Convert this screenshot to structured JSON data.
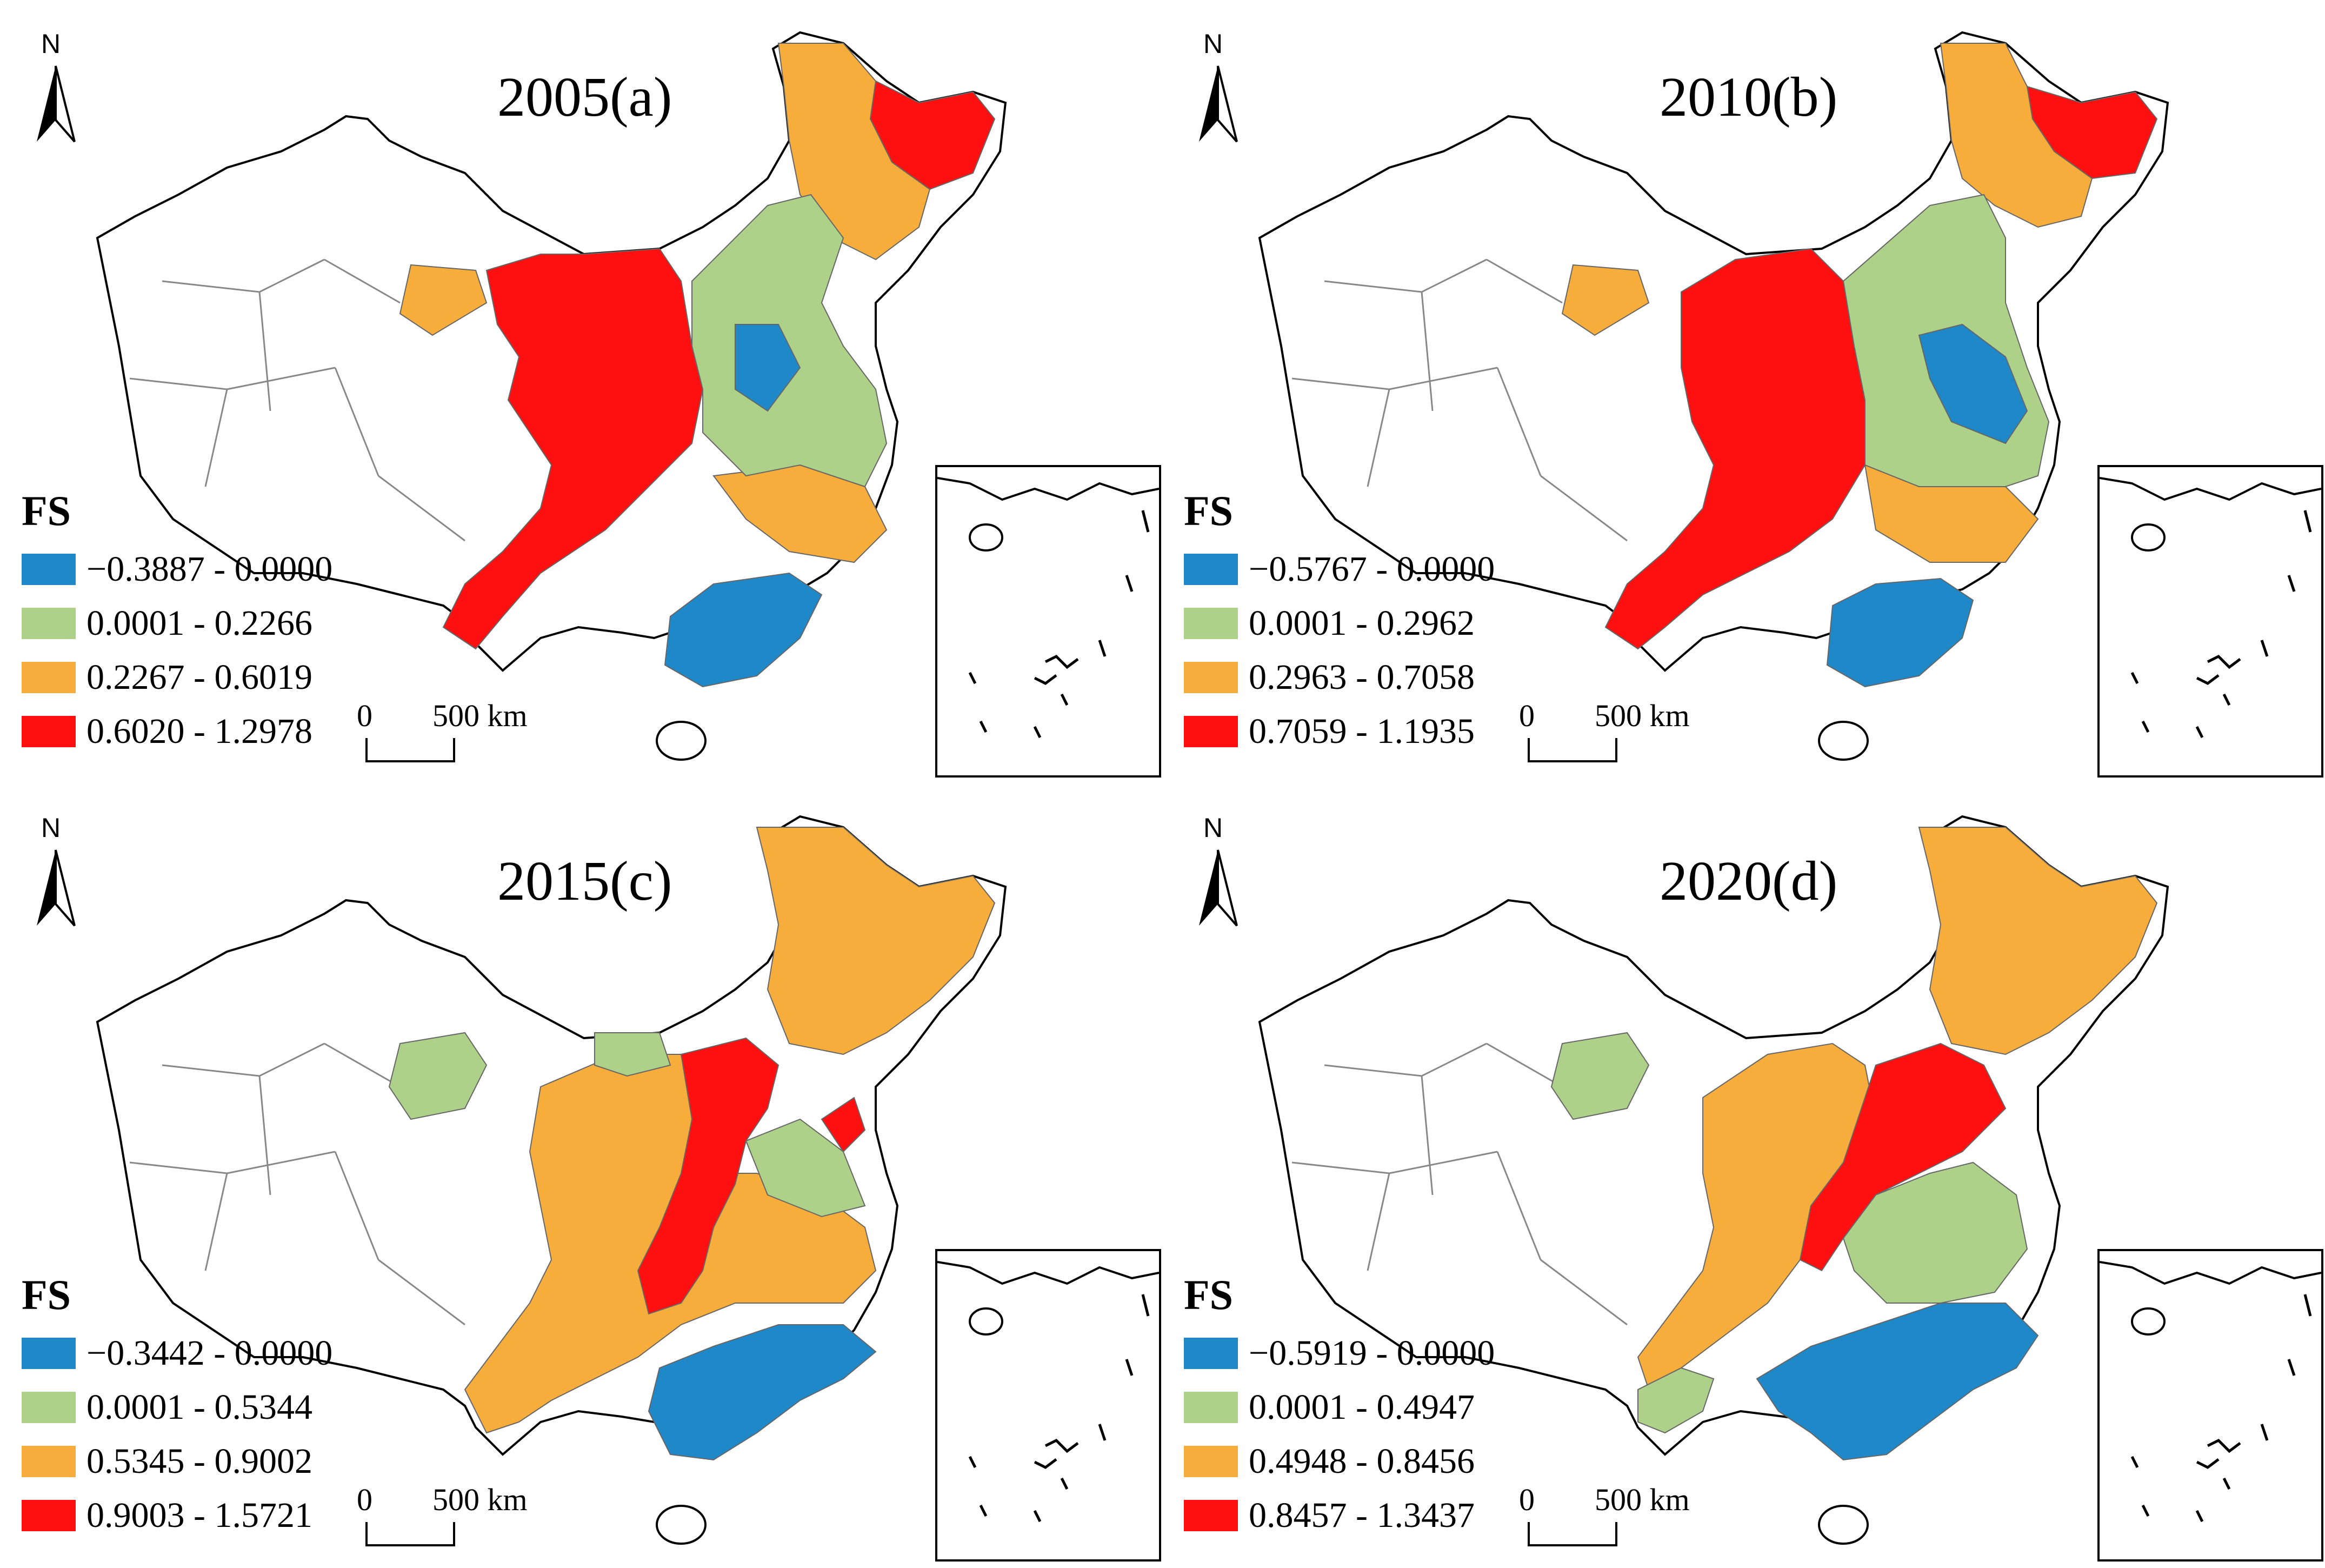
{
  "north_label": "N",
  "legend_title": "FS",
  "scale": {
    "zero": "0",
    "label": "500 km"
  },
  "colors": {
    "c1": "#1f88c8",
    "c2": "#aed18a",
    "c3": "#f7ad3b",
    "c4": "#fe1010"
  },
  "panels": [
    {
      "title": "2005(a)",
      "legend": [
        "−0.3887 - 0.0000",
        "0.0001 - 0.2266",
        "0.2267 - 0.6019",
        "0.6020 - 1.2978"
      ]
    },
    {
      "title": "2010(b)",
      "legend": [
        "−0.5767 - 0.0000",
        "0.0001 - 0.2962",
        "0.2963 - 0.7058",
        "0.7059 - 1.1935"
      ]
    },
    {
      "title": "2015(c)",
      "legend": [
        "−0.3442 - 0.0000",
        "0.0001 - 0.5344",
        "0.5345 - 0.9002",
        "0.9003 - 1.5721"
      ]
    },
    {
      "title": "2020(d)",
      "legend": [
        "−0.5919 - 0.0000",
        "0.0001 - 0.4947",
        "0.4948 - 0.8456",
        "0.8457 - 1.3437"
      ]
    }
  ]
}
